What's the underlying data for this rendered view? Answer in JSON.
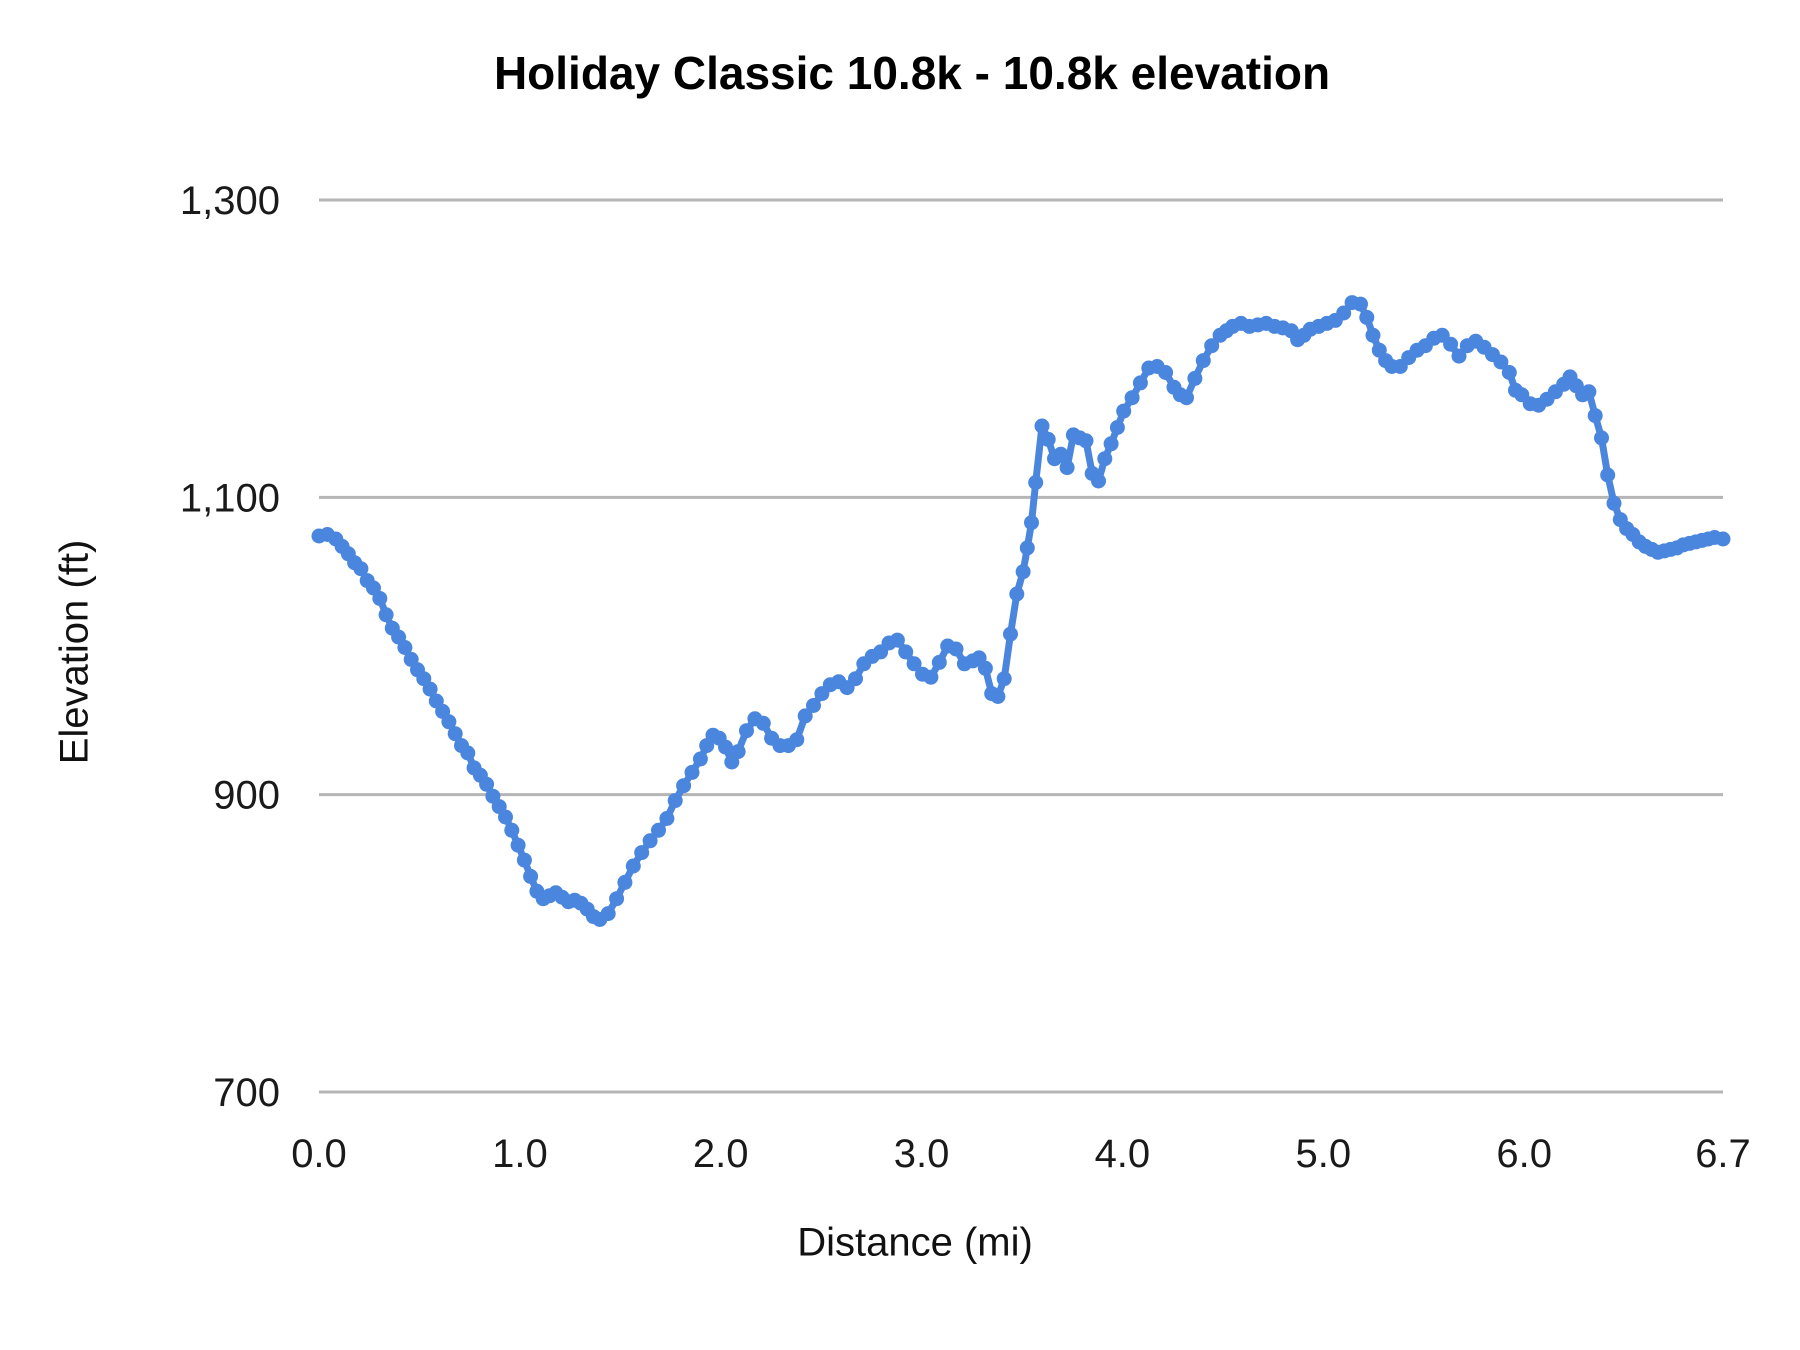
{
  "chart_data": {
    "type": "line",
    "title": "Holiday Classic 10.8k - 10.8k elevation",
    "xlabel": "Distance (mi)",
    "ylabel": "Elevation (ft)",
    "x_range": [
      0,
      6.7
    ],
    "y_range": [
      700,
      1300
    ],
    "grid": "horizontal",
    "legend": "none",
    "series_name": "elevation",
    "series_color": "#4a86de",
    "grid_color": "#b5b5b5",
    "marker_radius": 7.5,
    "line_width": 7,
    "y_ticks": [
      {
        "label": "1,300",
        "value": 1300
      },
      {
        "label": "1,100",
        "value": 1100
      },
      {
        "label": "900",
        "value": 900
      },
      {
        "label": "700",
        "value": 700
      }
    ],
    "x_ticks": [
      {
        "label": "0.0",
        "t": 0
      },
      {
        "label": "1.0",
        "t": 0.1431
      },
      {
        "label": "2.0",
        "t": 0.2861
      },
      {
        "label": "3.0",
        "t": 0.4292
      },
      {
        "label": "4.0",
        "t": 0.5722
      },
      {
        "label": "5.0",
        "t": 0.7153
      },
      {
        "label": "6.0",
        "t": 0.8584
      },
      {
        "label": "6.7",
        "t": 1.0
      }
    ],
    "points": [
      [
        0.0,
        1074
      ],
      [
        0.04,
        1075
      ],
      [
        0.08,
        1072
      ],
      [
        0.11,
        1067
      ],
      [
        0.14,
        1062
      ],
      [
        0.17,
        1056
      ],
      [
        0.2,
        1052
      ],
      [
        0.23,
        1044
      ],
      [
        0.26,
        1039
      ],
      [
        0.29,
        1032
      ],
      [
        0.32,
        1021
      ],
      [
        0.35,
        1012
      ],
      [
        0.38,
        1006
      ],
      [
        0.41,
        999
      ],
      [
        0.44,
        991
      ],
      [
        0.47,
        984
      ],
      [
        0.5,
        978
      ],
      [
        0.53,
        971
      ],
      [
        0.56,
        963
      ],
      [
        0.59,
        956
      ],
      [
        0.62,
        949
      ],
      [
        0.65,
        941
      ],
      [
        0.68,
        933
      ],
      [
        0.71,
        928
      ],
      [
        0.74,
        918
      ],
      [
        0.77,
        913
      ],
      [
        0.8,
        907
      ],
      [
        0.83,
        899
      ],
      [
        0.86,
        892
      ],
      [
        0.89,
        885
      ],
      [
        0.92,
        876
      ],
      [
        0.95,
        866
      ],
      [
        0.98,
        856
      ],
      [
        1.01,
        845
      ],
      [
        1.04,
        835
      ],
      [
        1.07,
        830
      ],
      [
        1.1,
        832
      ],
      [
        1.13,
        834
      ],
      [
        1.16,
        831
      ],
      [
        1.19,
        828
      ],
      [
        1.22,
        829
      ],
      [
        1.25,
        827
      ],
      [
        1.28,
        823
      ],
      [
        1.31,
        818
      ],
      [
        1.34,
        816
      ],
      [
        1.38,
        820
      ],
      [
        1.42,
        830
      ],
      [
        1.46,
        841
      ],
      [
        1.5,
        852
      ],
      [
        1.54,
        861
      ],
      [
        1.58,
        869
      ],
      [
        1.62,
        876
      ],
      [
        1.66,
        884
      ],
      [
        1.7,
        896
      ],
      [
        1.74,
        906
      ],
      [
        1.78,
        915
      ],
      [
        1.82,
        924
      ],
      [
        1.85,
        933
      ],
      [
        1.88,
        940
      ],
      [
        1.91,
        938
      ],
      [
        1.94,
        932
      ],
      [
        1.97,
        922
      ],
      [
        2.0,
        929
      ],
      [
        2.04,
        943
      ],
      [
        2.08,
        951
      ],
      [
        2.12,
        948
      ],
      [
        2.16,
        938
      ],
      [
        2.2,
        933
      ],
      [
        2.24,
        933
      ],
      [
        2.28,
        937
      ],
      [
        2.32,
        953
      ],
      [
        2.36,
        960
      ],
      [
        2.4,
        968
      ],
      [
        2.44,
        974
      ],
      [
        2.48,
        976
      ],
      [
        2.52,
        972
      ],
      [
        2.56,
        978
      ],
      [
        2.6,
        988
      ],
      [
        2.64,
        993
      ],
      [
        2.68,
        996
      ],
      [
        2.72,
        1002
      ],
      [
        2.76,
        1004
      ],
      [
        2.8,
        996
      ],
      [
        2.84,
        988
      ],
      [
        2.88,
        981
      ],
      [
        2.92,
        979
      ],
      [
        2.96,
        989
      ],
      [
        3.0,
        1000
      ],
      [
        3.04,
        998
      ],
      [
        3.08,
        988
      ],
      [
        3.12,
        990
      ],
      [
        3.15,
        992
      ],
      [
        3.18,
        985
      ],
      [
        3.21,
        968
      ],
      [
        3.24,
        966
      ],
      [
        3.27,
        978
      ],
      [
        3.3,
        1008
      ],
      [
        3.33,
        1035
      ],
      [
        3.36,
        1050
      ],
      [
        3.38,
        1066
      ],
      [
        3.4,
        1083
      ],
      [
        3.42,
        1110
      ],
      [
        3.45,
        1148
      ],
      [
        3.48,
        1139
      ],
      [
        3.51,
        1126
      ],
      [
        3.54,
        1129
      ],
      [
        3.57,
        1120
      ],
      [
        3.6,
        1142
      ],
      [
        3.63,
        1140
      ],
      [
        3.66,
        1138
      ],
      [
        3.69,
        1116
      ],
      [
        3.72,
        1111
      ],
      [
        3.75,
        1126
      ],
      [
        3.78,
        1136
      ],
      [
        3.81,
        1147
      ],
      [
        3.84,
        1158
      ],
      [
        3.88,
        1167
      ],
      [
        3.92,
        1177
      ],
      [
        3.96,
        1187
      ],
      [
        4.0,
        1188
      ],
      [
        4.04,
        1184
      ],
      [
        4.08,
        1174
      ],
      [
        4.11,
        1169
      ],
      [
        4.14,
        1167
      ],
      [
        4.18,
        1180
      ],
      [
        4.22,
        1192
      ],
      [
        4.26,
        1202
      ],
      [
        4.3,
        1209
      ],
      [
        4.33,
        1212
      ],
      [
        4.36,
        1215
      ],
      [
        4.4,
        1217
      ],
      [
        4.44,
        1215
      ],
      [
        4.48,
        1216
      ],
      [
        4.52,
        1217
      ],
      [
        4.56,
        1215
      ],
      [
        4.6,
        1214
      ],
      [
        4.64,
        1212
      ],
      [
        4.67,
        1206
      ],
      [
        4.7,
        1209
      ],
      [
        4.73,
        1213
      ],
      [
        4.77,
        1215
      ],
      [
        4.81,
        1217
      ],
      [
        4.85,
        1219
      ],
      [
        4.89,
        1224
      ],
      [
        4.93,
        1231
      ],
      [
        4.97,
        1230
      ],
      [
        5.0,
        1221
      ],
      [
        5.03,
        1209
      ],
      [
        5.06,
        1199
      ],
      [
        5.09,
        1192
      ],
      [
        5.12,
        1188
      ],
      [
        5.16,
        1188
      ],
      [
        5.2,
        1194
      ],
      [
        5.24,
        1199
      ],
      [
        5.28,
        1202
      ],
      [
        5.32,
        1207
      ],
      [
        5.36,
        1209
      ],
      [
        5.4,
        1203
      ],
      [
        5.44,
        1195
      ],
      [
        5.48,
        1202
      ],
      [
        5.52,
        1205
      ],
      [
        5.56,
        1201
      ],
      [
        5.6,
        1196
      ],
      [
        5.64,
        1191
      ],
      [
        5.68,
        1184
      ],
      [
        5.71,
        1172
      ],
      [
        5.74,
        1169
      ],
      [
        5.78,
        1163
      ],
      [
        5.82,
        1162
      ],
      [
        5.86,
        1166
      ],
      [
        5.9,
        1171
      ],
      [
        5.94,
        1176
      ],
      [
        5.97,
        1181
      ],
      [
        6.0,
        1175
      ],
      [
        6.03,
        1169
      ],
      [
        6.06,
        1171
      ],
      [
        6.09,
        1155
      ],
      [
        6.12,
        1140
      ],
      [
        6.15,
        1115
      ],
      [
        6.18,
        1096
      ],
      [
        6.21,
        1085
      ],
      [
        6.24,
        1079
      ],
      [
        6.27,
        1075
      ],
      [
        6.3,
        1070
      ],
      [
        6.33,
        1067
      ],
      [
        6.36,
        1065
      ],
      [
        6.39,
        1063
      ],
      [
        6.42,
        1064
      ],
      [
        6.45,
        1065
      ],
      [
        6.48,
        1066
      ],
      [
        6.51,
        1068
      ],
      [
        6.54,
        1069
      ],
      [
        6.57,
        1070
      ],
      [
        6.6,
        1071
      ],
      [
        6.63,
        1072
      ],
      [
        6.66,
        1073
      ],
      [
        6.7,
        1072
      ]
    ]
  }
}
